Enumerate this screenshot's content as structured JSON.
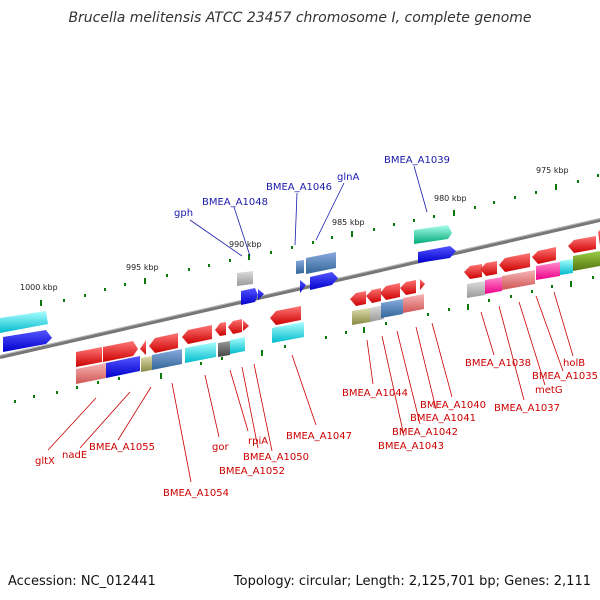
{
  "title": "Brucella melitensis ATCC 23457 chromosome I, complete genome",
  "footer": {
    "accession": "Accession: NC_012441",
    "stats": "Topology: circular; Length: 2,125,701 bp; Genes: 2,111"
  },
  "scale_labels": [
    "1000 kbp",
    "995 kbp",
    "990 kbp",
    "985 kbp",
    "980 kbp",
    "975 kbp"
  ],
  "labels_top": [
    "gph",
    "BMEA_A1048",
    "BMEA_A1046",
    "glnA",
    "BMEA_A1039"
  ],
  "labels_bottom": [
    "gltX",
    "nadE",
    "BMEA_A1055",
    "BMEA_A1054",
    "gor",
    "rpiA",
    "BMEA_A1052",
    "BMEA_A1050",
    "BMEA_A1047",
    "BMEA_A1044",
    "BMEA_A1043",
    "BMEA_A1042",
    "BMEA_A1041",
    "BMEA_A1040",
    "BMEA_A1038",
    "BMEA_A1037",
    "metG",
    "BMEA_A1035",
    "holB"
  ],
  "colors": {
    "forward_cds": "#ee0000",
    "reverse_cds": "#0000ee",
    "backbone": "#808080",
    "label_red": "#cc0000",
    "label_blue": "#1a1aaa",
    "tick": "#0a7a0a"
  }
}
